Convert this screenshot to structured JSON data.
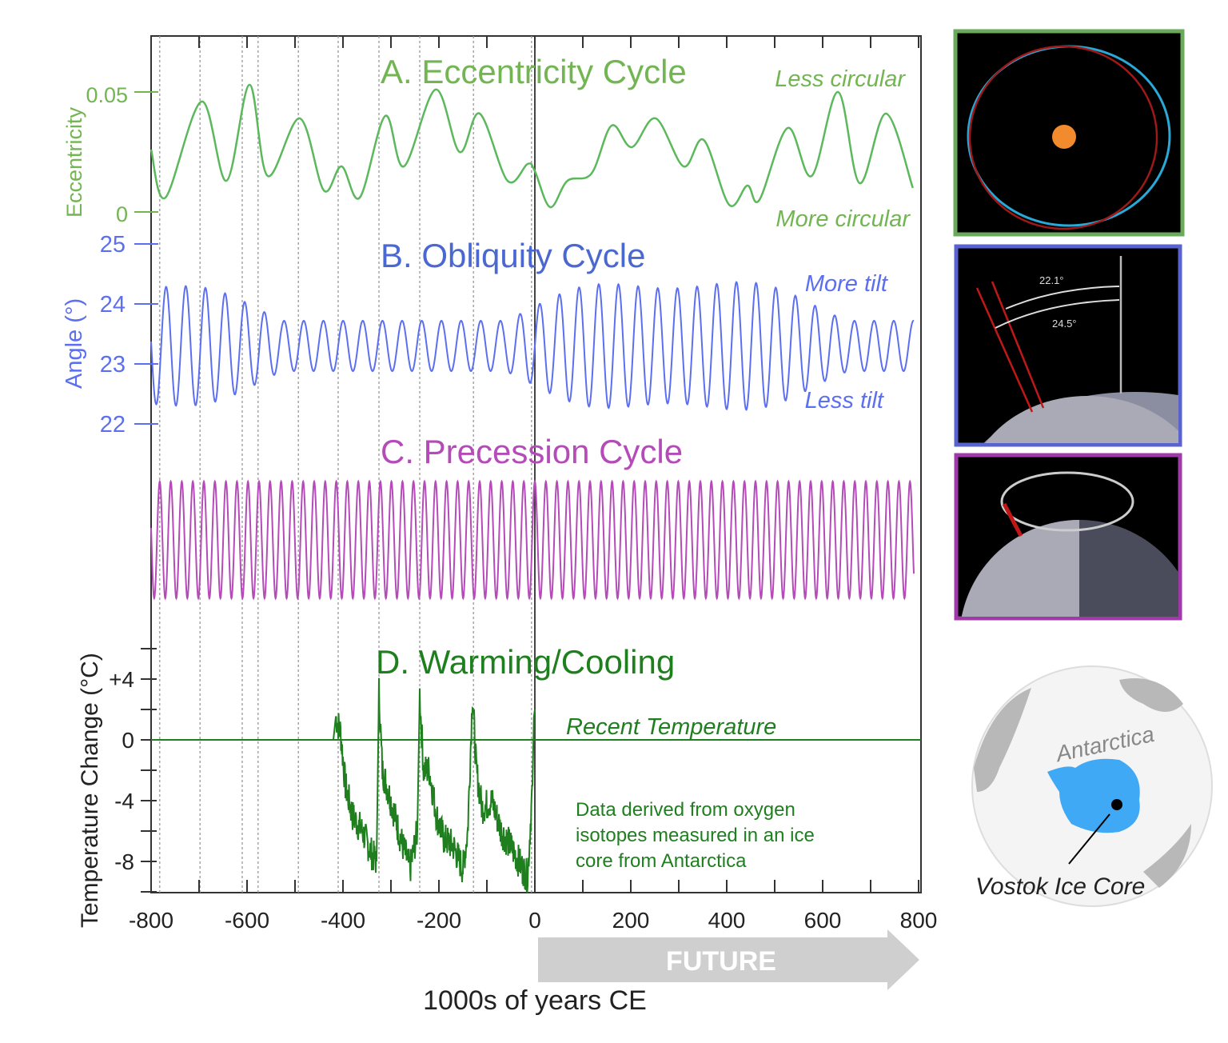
{
  "colors": {
    "eccentricity": "#5cb85c",
    "eccentricity_text": "#72b552",
    "obliquity": "#5b6ff0",
    "obliquity_text": "#4a68d0",
    "precession": "#b44bb8",
    "temperature": "#1f7f1f",
    "future_arrow": "#cfcfcf"
  },
  "chart_data": [
    {
      "type": "line",
      "title": "A. Eccentricity Cycle",
      "ylabel": "Eccentricity",
      "xlim": [
        -800,
        800
      ],
      "ylim": [
        0,
        0.06
      ],
      "yticks": [
        "0",
        "0.05"
      ],
      "annotations": [
        "Less circular",
        "More circular"
      ],
      "x": [
        -800,
        -770,
        -695,
        -643,
        -595,
        -557,
        -490,
        -440,
        -403,
        -365,
        -312,
        -273,
        -207,
        -157,
        -115,
        -57,
        -15,
        0,
        32,
        68,
        118,
        160,
        202,
        252,
        310,
        352,
        405,
        443,
        468,
        527,
        577,
        632,
        677,
        732,
        788
      ],
      "y": [
        0.026,
        0.006,
        0.046,
        0.013,
        0.053,
        0.015,
        0.039,
        0.009,
        0.019,
        0.006,
        0.04,
        0.019,
        0.051,
        0.025,
        0.041,
        0.013,
        0.02,
        0.017,
        0.002,
        0.013,
        0.016,
        0.036,
        0.027,
        0.039,
        0.019,
        0.03,
        0.003,
        0.011,
        0.005,
        0.035,
        0.015,
        0.05,
        0.012,
        0.041,
        0.01
      ]
    },
    {
      "type": "line",
      "title": "B. Obliquity Cycle",
      "ylabel": "Angle (°)",
      "xlim": [
        -800,
        800
      ],
      "ylim": [
        22,
        25
      ],
      "yticks": [
        "22",
        "23",
        "24",
        "25"
      ],
      "annotations": [
        "More tilt",
        "Less tilt"
      ],
      "period_kyr": 41,
      "range_deg": [
        22.1,
        24.5
      ]
    },
    {
      "type": "line",
      "title": "C. Precession Cycle",
      "xlim": [
        -800,
        800
      ],
      "period_kyr": 23
    },
    {
      "type": "line",
      "title": "D. Warming/Cooling",
      "ylabel": "Temperature Change (°C)",
      "xlabel": "1000s of years CE",
      "xlim": [
        -800,
        800
      ],
      "ylim": [
        -10,
        6
      ],
      "yticks": [
        "+4",
        "0",
        "-4",
        "-8"
      ],
      "xticks": [
        "-800",
        "-600",
        "-400",
        "-200",
        "0",
        "200",
        "400",
        "600",
        "800"
      ],
      "reference_line_label": "Recent Temperature",
      "note": [
        "Data derived from oxygen",
        "isotopes measured in an ice",
        "core from Antarctica"
      ],
      "x": [
        -420,
        -415,
        -405,
        -395,
        -380,
        -360,
        -340,
        -330,
        -325,
        -318,
        -300,
        -280,
        -260,
        -245,
        -240,
        -232,
        -220,
        -205,
        -190,
        -170,
        -150,
        -140,
        -130,
        -122,
        -110,
        -90,
        -70,
        -50,
        -25,
        -15,
        -5,
        -2,
        0
      ],
      "y": [
        0,
        1.5,
        0.5,
        -3,
        -5,
        -6,
        -7.5,
        -8,
        3.2,
        -2,
        -4,
        -6.5,
        -8.5,
        -6,
        3,
        -2,
        -2,
        -5,
        -6.5,
        -7,
        -8.5,
        -6,
        3,
        -2,
        -4.5,
        -4,
        -6,
        -7,
        -8.5,
        -9,
        -3,
        1.5,
        2
      ],
      "dashed_lines_kyr": [
        -782,
        -698,
        -610,
        -577,
        -493,
        -410,
        -325,
        -240,
        -128,
        -7
      ]
    }
  ],
  "future_label": "FUTURE",
  "panels": {
    "obliquity_angles": [
      "22.1°",
      "24.5°"
    ],
    "map_label": "Antarctica",
    "map_caption": "Vostok Ice Core"
  }
}
